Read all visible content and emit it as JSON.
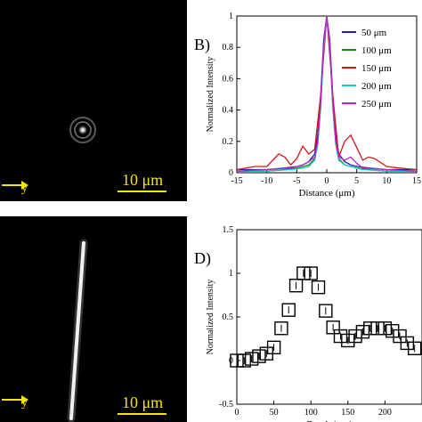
{
  "panel_a": {
    "scale_label": "10 μm",
    "axis_label": "y"
  },
  "panel_c": {
    "scale_label": "10 μm",
    "axis_label": "y"
  },
  "chart_data": [
    {
      "type": "line",
      "panel_label": "B)",
      "xlabel": "Distance (μm)",
      "ylabel": "Normalized Intensity",
      "xlim": [
        -15,
        15
      ],
      "ylim": [
        0,
        1
      ],
      "xticks": [
        -15,
        -10,
        -5,
        0,
        5,
        10,
        15
      ],
      "yticks": [
        0,
        0.2,
        0.4,
        0.6,
        0.8,
        1
      ],
      "legend_position": "top-right",
      "grid": false,
      "series": [
        {
          "name": "50 μm",
          "color": "#1f1fb8",
          "x": [
            -15,
            -10,
            -7,
            -5,
            -4,
            -3,
            -2,
            -1.5,
            -1,
            -0.5,
            0,
            0.5,
            1,
            1.5,
            2,
            3,
            4,
            5,
            7,
            10,
            15
          ],
          "y": [
            0.02,
            0.02,
            0.03,
            0.04,
            0.05,
            0.07,
            0.12,
            0.25,
            0.5,
            0.85,
            1,
            0.85,
            0.5,
            0.25,
            0.12,
            0.07,
            0.05,
            0.04,
            0.03,
            0.02,
            0.02
          ]
        },
        {
          "name": "100 μm",
          "color": "#1e8c1e",
          "x": [
            -15,
            -10,
            -7,
            -5,
            -4,
            -3,
            -2,
            -1.5,
            -1,
            -0.5,
            0,
            0.5,
            1,
            1.5,
            2,
            3,
            4,
            5,
            7,
            10,
            15
          ],
          "y": [
            0.01,
            0.01,
            0.02,
            0.03,
            0.04,
            0.05,
            0.09,
            0.2,
            0.45,
            0.82,
            1,
            0.82,
            0.45,
            0.2,
            0.09,
            0.05,
            0.04,
            0.03,
            0.02,
            0.01,
            0.01
          ]
        },
        {
          "name": "150 μm",
          "color": "#d01818",
          "x": [
            -15,
            -12,
            -10,
            -8,
            -7,
            -6,
            -5,
            -4,
            -3,
            -2,
            -1,
            0,
            1,
            2,
            3,
            4,
            5,
            6,
            7,
            8,
            10,
            12,
            15
          ],
          "y": [
            0.02,
            0.04,
            0.04,
            0.12,
            0.1,
            0.05,
            0.09,
            0.17,
            0.12,
            0.15,
            0.5,
            1,
            0.5,
            0.1,
            0.2,
            0.24,
            0.16,
            0.08,
            0.1,
            0.09,
            0.04,
            0.03,
            0.02
          ]
        },
        {
          "name": "200 μm",
          "color": "#19c3c3",
          "x": [
            -15,
            -10,
            -6,
            -4,
            -3,
            -2,
            -1.5,
            -1,
            -0.5,
            0,
            0.5,
            1,
            1.5,
            2,
            3,
            4,
            6,
            10,
            15
          ],
          "y": [
            0.01,
            0.01,
            0.02,
            0.03,
            0.04,
            0.08,
            0.18,
            0.42,
            0.8,
            1,
            0.8,
            0.42,
            0.18,
            0.08,
            0.05,
            0.04,
            0.02,
            0.01,
            0.01
          ]
        },
        {
          "name": "250 μm",
          "color": "#c41fc4",
          "x": [
            -15,
            -10,
            -6,
            -4,
            -3,
            -2,
            -1.5,
            -1,
            -0.5,
            0,
            0.5,
            1,
            1.5,
            2,
            3,
            4,
            5,
            6,
            10,
            15
          ],
          "y": [
            0.01,
            0.02,
            0.03,
            0.05,
            0.07,
            0.1,
            0.2,
            0.45,
            0.82,
            1,
            0.82,
            0.45,
            0.2,
            0.1,
            0.08,
            0.1,
            0.06,
            0.03,
            0.02,
            0.01
          ]
        }
      ]
    },
    {
      "type": "scatter",
      "panel_label": "D)",
      "xlabel": "Depth (μm)",
      "ylabel": "Normalized Intensity",
      "xlim": [
        0,
        250
      ],
      "ylim": [
        -0.5,
        1.5
      ],
      "xticks": [
        0,
        50,
        100,
        150,
        200
      ],
      "yticks": [
        -0.5,
        0,
        0.5,
        1,
        1.5
      ],
      "grid": false,
      "marker": "square",
      "points": [
        {
          "x": 0,
          "y": 0.0
        },
        {
          "x": 10,
          "y": 0.0
        },
        {
          "x": 20,
          "y": 0.02
        },
        {
          "x": 30,
          "y": 0.05
        },
        {
          "x": 40,
          "y": 0.08
        },
        {
          "x": 50,
          "y": 0.15
        },
        {
          "x": 60,
          "y": 0.37
        },
        {
          "x": 70,
          "y": 0.58
        },
        {
          "x": 80,
          "y": 0.86
        },
        {
          "x": 90,
          "y": 1.0
        },
        {
          "x": 100,
          "y": 1.0
        },
        {
          "x": 110,
          "y": 0.84
        },
        {
          "x": 120,
          "y": 0.57
        },
        {
          "x": 130,
          "y": 0.38
        },
        {
          "x": 140,
          "y": 0.28
        },
        {
          "x": 150,
          "y": 0.23
        },
        {
          "x": 160,
          "y": 0.28
        },
        {
          "x": 170,
          "y": 0.33
        },
        {
          "x": 180,
          "y": 0.37
        },
        {
          "x": 190,
          "y": 0.37
        },
        {
          "x": 200,
          "y": 0.37
        },
        {
          "x": 210,
          "y": 0.34
        },
        {
          "x": 220,
          "y": 0.28
        },
        {
          "x": 230,
          "y": 0.2
        },
        {
          "x": 240,
          "y": 0.14
        }
      ]
    }
  ]
}
